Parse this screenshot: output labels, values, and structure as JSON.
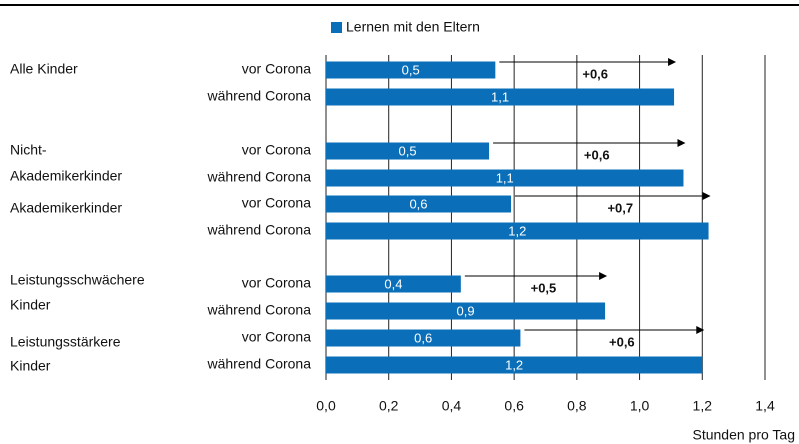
{
  "chart_data": {
    "type": "bar",
    "orientation": "horizontal",
    "legend": "top",
    "series": [
      {
        "name": "Lernen mit den Eltern",
        "color": "#0a6fb8",
        "values": [
          0.54,
          1.11,
          0.52,
          1.14,
          0.59,
          1.22,
          0.43,
          0.89,
          0.62,
          1.2
        ],
        "value_labels": [
          "0,5",
          "1,1",
          "0,5",
          "1,1",
          "0,6",
          "1,2",
          "0,4",
          "0,9",
          "0,6",
          "1,2"
        ]
      }
    ],
    "categories": [
      "vor Corona",
      "während Corona",
      "vor Corona",
      "während Corona",
      "vor Corona",
      "während Corona",
      "vor Corona",
      "während Corona",
      "vor Corona",
      "während Corona"
    ],
    "groups": [
      [
        "Alle Kinder"
      ],
      [
        "Nicht-",
        "Akademikerkinder"
      ],
      [
        "Akademikerkinder"
      ],
      [
        "Leistungsschwächere",
        "Kinder"
      ],
      [
        "Leistungsstärkere",
        "Kinder"
      ]
    ],
    "annotations": [
      "+0,6",
      "+0,6",
      "+0,7",
      "+0,5",
      "+0,6"
    ],
    "xlim": [
      0,
      1.4
    ],
    "xticks": [
      {
        "value": 0,
        "label": "0,0"
      },
      {
        "value": 0.2,
        "label": "0,2"
      },
      {
        "value": 0.4,
        "label": "0,4"
      },
      {
        "value": 0.6,
        "label": "0,6"
      },
      {
        "value": 0.8,
        "label": "0,8"
      },
      {
        "value": 1.0,
        "label": "1,0"
      },
      {
        "value": 1.2,
        "label": "1,2"
      },
      {
        "value": 1.4,
        "label": "1,4"
      }
    ],
    "xlabel": "Stunden pro Tag",
    "grid": true
  }
}
